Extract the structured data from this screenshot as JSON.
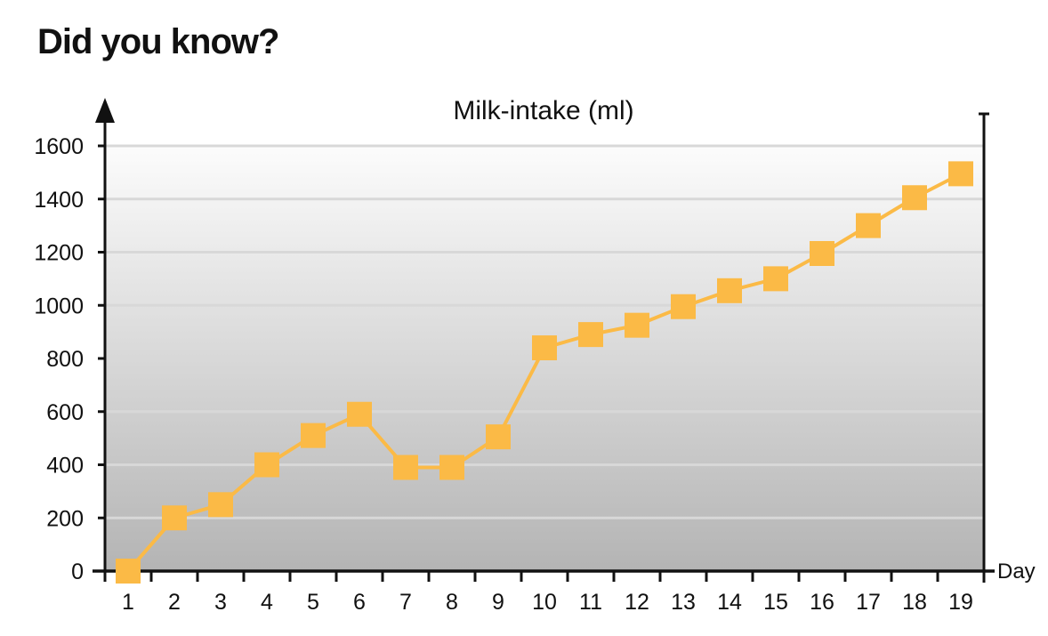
{
  "heading": "Did you know?",
  "colors": {
    "series": "#FBBA46",
    "axis": "#111111",
    "grid": "#D8D8D8",
    "background_top": "#FCFCFC",
    "background_bottom": "#B4B4B4"
  },
  "chart_data": {
    "type": "line",
    "title": "Milk-intake (ml)",
    "xlabel": "Day",
    "ylabel": "",
    "x": [
      1,
      2,
      3,
      4,
      5,
      6,
      7,
      8,
      9,
      10,
      11,
      12,
      13,
      14,
      15,
      16,
      17,
      18,
      19
    ],
    "series": [
      {
        "values": [
          0,
          200,
          250,
          400,
          510,
          590,
          390,
          390,
          505,
          840,
          890,
          925,
          995,
          1055,
          1100,
          1195,
          1300,
          1405,
          1495
        ],
        "marker": "square",
        "color": "#FBBA46"
      }
    ],
    "ylim": [
      0,
      1600
    ],
    "yticks": [
      0,
      200,
      400,
      600,
      800,
      1000,
      1200,
      1400,
      1600
    ],
    "grid": true,
    "legend": "none"
  }
}
